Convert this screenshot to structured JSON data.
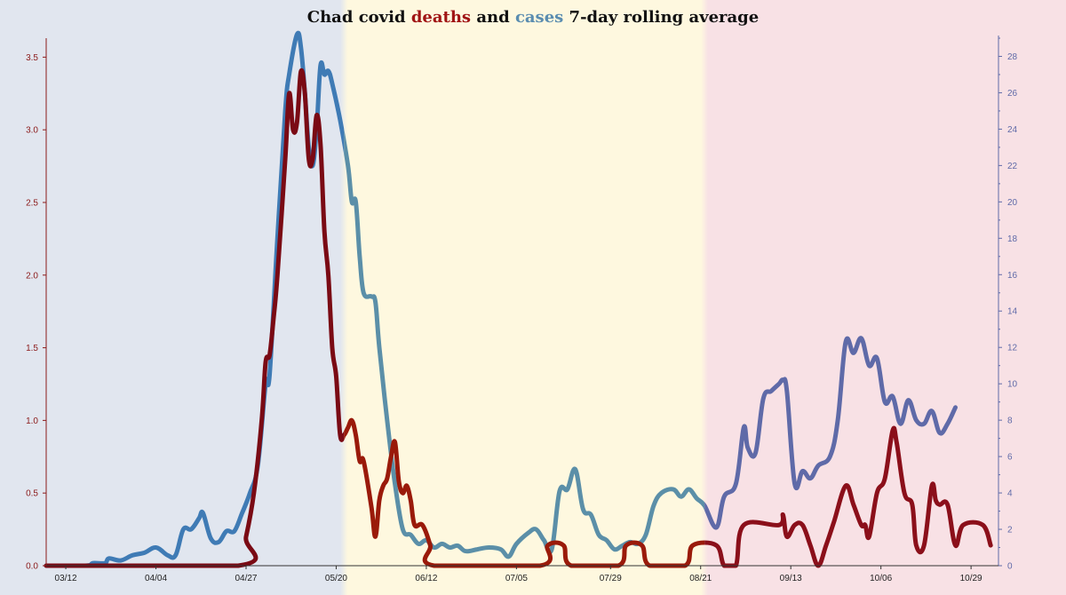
{
  "chart_data": {
    "type": "line",
    "title": {
      "prefix": "Chad covid ",
      "deaths_word": "deaths",
      "middle": " and ",
      "cases_word": "cases",
      "suffix": " 7-day rolling average"
    },
    "xlabel": "",
    "ylabel_left": "",
    "ylabel_right": "",
    "x_ticks": [
      "03/12",
      "04/04",
      "04/27",
      "05/20",
      "06/12",
      "07/05",
      "07/29",
      "08/21",
      "09/13",
      "10/06",
      "10/29"
    ],
    "y_left_ticks": [
      "0.0",
      "0.5",
      "1.0",
      "1.5",
      "2.0",
      "2.5",
      "3.0",
      "3.5"
    ],
    "y_right_ticks": [
      "0",
      "2",
      "4",
      "6",
      "8",
      "10",
      "12",
      "14",
      "16",
      "18",
      "20",
      "22",
      "24",
      "26",
      "28"
    ],
    "y_left_range": [
      0,
      3.6
    ],
    "y_right_range": [
      0,
      29
    ],
    "grid": false,
    "legend": "none (series named in title)",
    "background_bands": [
      {
        "from": "03/07",
        "to": "05/22",
        "color": "#e1e6ef"
      },
      {
        "from": "05/22",
        "to": "08/22",
        "color": "#fef8df"
      },
      {
        "from": "08/22",
        "to": "11/05",
        "color": "#f8e1e5"
      }
    ],
    "colors": {
      "deaths": "#8b1a1a",
      "cases": "#4a7fa8",
      "left_axis": "#8b1a1a",
      "right_axis": "#5f6aa8",
      "bottom_axis": "#333333"
    },
    "series": [
      {
        "name": "deaths",
        "axis": "left",
        "points": [
          [
            "03/07",
            0
          ],
          [
            "04/25",
            0
          ],
          [
            "04/27",
            0.2
          ],
          [
            "04/29",
            0.5
          ],
          [
            "05/01",
            1.0
          ],
          [
            "05/02",
            1.4
          ],
          [
            "05/03",
            1.45
          ],
          [
            "05/04",
            1.7
          ],
          [
            "05/05",
            2.0
          ],
          [
            "05/07",
            2.8
          ],
          [
            "05/08",
            3.25
          ],
          [
            "05/09",
            3.0
          ],
          [
            "05/10",
            3.05
          ],
          [
            "05/11",
            3.4
          ],
          [
            "05/12",
            3.25
          ],
          [
            "05/13",
            2.8
          ],
          [
            "05/14",
            2.8
          ],
          [
            "05/15",
            3.1
          ],
          [
            "05/16",
            2.9
          ],
          [
            "05/17",
            2.3
          ],
          [
            "05/18",
            2.0
          ],
          [
            "05/19",
            1.5
          ],
          [
            "05/20",
            1.3
          ],
          [
            "05/21",
            0.9
          ],
          [
            "05/22",
            0.9
          ],
          [
            "05/23",
            0.95
          ],
          [
            "05/24",
            1.0
          ],
          [
            "05/25",
            0.9
          ],
          [
            "05/26",
            0.72
          ],
          [
            "05/27",
            0.72
          ],
          [
            "05/29",
            0.4
          ],
          [
            "05/30",
            0.2
          ],
          [
            "05/31",
            0.45
          ],
          [
            "06/01",
            0.55
          ],
          [
            "06/02",
            0.6
          ],
          [
            "06/03",
            0.75
          ],
          [
            "06/04",
            0.85
          ],
          [
            "06/05",
            0.58
          ],
          [
            "06/06",
            0.5
          ],
          [
            "06/07",
            0.55
          ],
          [
            "06/08",
            0.45
          ],
          [
            "06/09",
            0.28
          ],
          [
            "06/11",
            0.28
          ],
          [
            "06/13",
            0.14
          ],
          [
            "06/14",
            0
          ],
          [
            "07/11",
            0
          ],
          [
            "07/13",
            0.14
          ],
          [
            "07/17",
            0.14
          ],
          [
            "07/19",
            0
          ],
          [
            "07/31",
            0
          ],
          [
            "08/02",
            0.14
          ],
          [
            "08/06",
            0.14
          ],
          [
            "08/08",
            0
          ],
          [
            "08/17",
            0
          ],
          [
            "08/19",
            0.14
          ],
          [
            "08/25",
            0.14
          ],
          [
            "08/27",
            0
          ],
          [
            "08/30",
            0
          ],
          [
            "09/01",
            0.28
          ],
          [
            "09/10",
            0.28
          ],
          [
            "09/11",
            0.35
          ],
          [
            "09/12",
            0.2
          ],
          [
            "09/14",
            0.28
          ],
          [
            "09/16",
            0.28
          ],
          [
            "09/18",
            0.14
          ],
          [
            "09/20",
            0
          ],
          [
            "09/22",
            0.14
          ],
          [
            "09/24",
            0.3
          ],
          [
            "09/27",
            0.55
          ],
          [
            "09/29",
            0.42
          ],
          [
            "10/01",
            0.28
          ],
          [
            "10/02",
            0.28
          ],
          [
            "10/03",
            0.2
          ],
          [
            "10/05",
            0.5
          ],
          [
            "10/07",
            0.6
          ],
          [
            "10/09",
            0.93
          ],
          [
            "10/10",
            0.85
          ],
          [
            "10/12",
            0.5
          ],
          [
            "10/14",
            0.42
          ],
          [
            "10/15",
            0.14
          ],
          [
            "10/17",
            0.14
          ],
          [
            "10/19",
            0.55
          ],
          [
            "10/20",
            0.45
          ],
          [
            "10/21",
            0.42
          ],
          [
            "10/23",
            0.42
          ],
          [
            "10/25",
            0.14
          ],
          [
            "10/27",
            0.28
          ],
          [
            "11/01",
            0.28
          ],
          [
            "11/03",
            0.14
          ]
        ]
      },
      {
        "name": "cases",
        "axis": "right",
        "points": [
          [
            "03/07",
            0
          ],
          [
            "03/17",
            0
          ],
          [
            "03/19",
            0.14
          ],
          [
            "03/22",
            0.14
          ],
          [
            "03/23",
            0.4
          ],
          [
            "03/26",
            0.29
          ],
          [
            "03/29",
            0.57
          ],
          [
            "04/01",
            0.71
          ],
          [
            "04/04",
            1.0
          ],
          [
            "04/07",
            0.57
          ],
          [
            "04/09",
            0.57
          ],
          [
            "04/11",
            2.0
          ],
          [
            "04/13",
            2.0
          ],
          [
            "04/15",
            2.6
          ],
          [
            "04/16",
            2.9
          ],
          [
            "04/18",
            1.5
          ],
          [
            "04/20",
            1.3
          ],
          [
            "04/22",
            1.9
          ],
          [
            "04/24",
            1.9
          ],
          [
            "04/26",
            2.9
          ],
          [
            "04/28",
            4.0
          ],
          [
            "04/30",
            5.5
          ],
          [
            "05/02",
            10.0
          ],
          [
            "05/03",
            10.5
          ],
          [
            "05/05",
            18.0
          ],
          [
            "05/07",
            25.0
          ],
          [
            "05/08",
            27.0
          ],
          [
            "05/10",
            29.2
          ],
          [
            "05/11",
            28.5
          ],
          [
            "05/12",
            26.0
          ],
          [
            "05/13",
            23.0
          ],
          [
            "05/14",
            22.0
          ],
          [
            "05/15",
            24.0
          ],
          [
            "05/16",
            27.5
          ],
          [
            "05/17",
            27.0
          ],
          [
            "05/18",
            27.2
          ],
          [
            "05/19",
            26.5
          ],
          [
            "05/21",
            24.5
          ],
          [
            "05/23",
            22.0
          ],
          [
            "05/24",
            20.0
          ],
          [
            "05/25",
            20.0
          ],
          [
            "05/26",
            17.0
          ],
          [
            "05/27",
            15.0
          ],
          [
            "05/29",
            14.8
          ],
          [
            "05/30",
            14.5
          ],
          [
            "05/31",
            12.0
          ],
          [
            "06/02",
            8.0
          ],
          [
            "06/04",
            4.5
          ],
          [
            "06/06",
            2.0
          ],
          [
            "06/08",
            1.7
          ],
          [
            "06/10",
            1.2
          ],
          [
            "06/12",
            1.4
          ],
          [
            "06/14",
            1.0
          ],
          [
            "06/16",
            1.2
          ],
          [
            "06/18",
            1.0
          ],
          [
            "06/20",
            1.1
          ],
          [
            "06/22",
            0.8
          ],
          [
            "06/25",
            0.9
          ],
          [
            "06/28",
            1.0
          ],
          [
            "07/01",
            0.9
          ],
          [
            "07/03",
            0.5
          ],
          [
            "07/05",
            1.2
          ],
          [
            "07/08",
            1.8
          ],
          [
            "07/10",
            2.0
          ],
          [
            "07/12",
            1.4
          ],
          [
            "07/14",
            0.9
          ],
          [
            "07/16",
            4.1
          ],
          [
            "07/18",
            4.2
          ],
          [
            "07/20",
            5.3
          ],
          [
            "07/22",
            3.1
          ],
          [
            "07/24",
            2.8
          ],
          [
            "07/26",
            1.7
          ],
          [
            "07/28",
            1.4
          ],
          [
            "07/30",
            0.9
          ],
          [
            "08/01",
            1.1
          ],
          [
            "08/03",
            1.3
          ],
          [
            "08/05",
            1.2
          ],
          [
            "08/07",
            1.7
          ],
          [
            "08/09",
            3.3
          ],
          [
            "08/11",
            4.0
          ],
          [
            "08/14",
            4.2
          ],
          [
            "08/16",
            3.8
          ],
          [
            "08/18",
            4.2
          ],
          [
            "08/20",
            3.7
          ],
          [
            "08/22",
            3.3
          ],
          [
            "08/25",
            2.1
          ],
          [
            "08/27",
            3.8
          ],
          [
            "08/30",
            4.5
          ],
          [
            "09/01",
            7.6
          ],
          [
            "09/02",
            6.5
          ],
          [
            "09/04",
            6.2
          ],
          [
            "09/06",
            9.2
          ],
          [
            "09/08",
            9.6
          ],
          [
            "09/10",
            10.0
          ],
          [
            "09/11",
            10.2
          ],
          [
            "09/12",
            9.6
          ],
          [
            "09/14",
            4.5
          ],
          [
            "09/16",
            5.2
          ],
          [
            "09/18",
            4.8
          ],
          [
            "09/20",
            5.5
          ],
          [
            "09/23",
            6.0
          ],
          [
            "09/25",
            8.0
          ],
          [
            "09/27",
            12.3
          ],
          [
            "09/29",
            11.7
          ],
          [
            "10/01",
            12.5
          ],
          [
            "10/03",
            11.0
          ],
          [
            "10/05",
            11.4
          ],
          [
            "10/07",
            9.0
          ],
          [
            "10/09",
            9.3
          ],
          [
            "10/11",
            7.8
          ],
          [
            "10/13",
            9.1
          ],
          [
            "10/15",
            8.0
          ],
          [
            "10/17",
            7.8
          ],
          [
            "10/19",
            8.5
          ],
          [
            "10/21",
            7.3
          ],
          [
            "10/23",
            7.8
          ],
          [
            "10/25",
            8.7
          ]
        ]
      }
    ]
  }
}
